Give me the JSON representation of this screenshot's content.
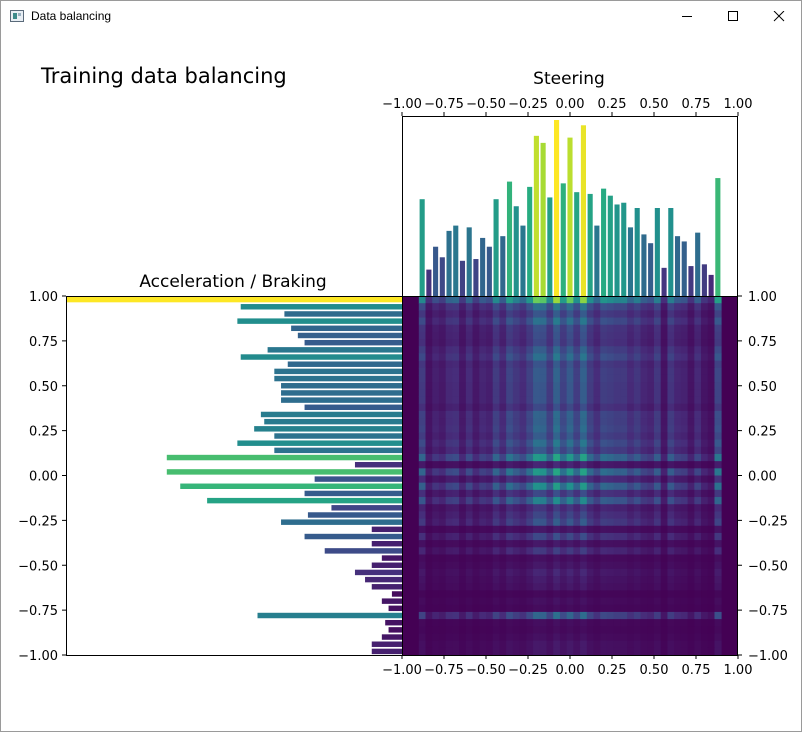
{
  "window": {
    "title": "Data balancing",
    "controls": {
      "minimize": "minimize-icon",
      "maximize": "maximize-icon",
      "close": "close-icon"
    }
  },
  "figure_title": "Training data balancing",
  "chart_data": [
    {
      "type": "bar",
      "orientation": "vertical",
      "title": "Steering",
      "xlim": [
        -1.0,
        1.0
      ],
      "xticks": [
        "−1.00",
        "−0.75",
        "−0.50",
        "−0.25",
        "0.00",
        "0.25",
        "0.50",
        "0.75",
        "1.00"
      ],
      "grid": false,
      "colormap": "viridis",
      "bin_width": 0.04,
      "x": [
        -0.88,
        -0.84,
        -0.8,
        -0.76,
        -0.72,
        -0.68,
        -0.64,
        -0.6,
        -0.56,
        -0.52,
        -0.48,
        -0.44,
        -0.4,
        -0.36,
        -0.32,
        -0.28,
        -0.24,
        -0.2,
        -0.16,
        -0.12,
        -0.08,
        -0.04,
        0.0,
        0.04,
        0.08,
        0.12,
        0.16,
        0.2,
        0.24,
        0.28,
        0.32,
        0.36,
        0.4,
        0.44,
        0.48,
        0.52,
        0.56,
        0.6,
        0.64,
        0.68,
        0.72,
        0.76,
        0.8,
        0.84,
        0.88
      ],
      "values": [
        0.55,
        0.15,
        0.28,
        0.22,
        0.37,
        0.4,
        0.2,
        0.39,
        0.21,
        0.33,
        0.28,
        0.55,
        0.34,
        0.65,
        0.51,
        0.4,
        0.62,
        0.91,
        0.87,
        0.56,
        1.0,
        0.64,
        0.9,
        0.59,
        0.97,
        0.58,
        0.4,
        0.61,
        0.57,
        0.52,
        0.53,
        0.39,
        0.5,
        0.35,
        0.3,
        0.5,
        0.16,
        0.5,
        0.34,
        0.31,
        0.17,
        0.36,
        0.18,
        0.12,
        0.67
      ]
    },
    {
      "type": "bar",
      "orientation": "horizontal",
      "title": "Acceleration / Braking",
      "ylim": [
        -1.0,
        1.0
      ],
      "yticks": [
        "1.00",
        "0.75",
        "0.50",
        "0.25",
        "0.00",
        "−0.25",
        "−0.50",
        "−0.75",
        "−1.00"
      ],
      "grid": false,
      "colormap": "viridis",
      "bin_width": 0.04,
      "y": [
        0.98,
        0.94,
        0.9,
        0.86,
        0.82,
        0.78,
        0.74,
        0.7,
        0.66,
        0.62,
        0.58,
        0.54,
        0.5,
        0.46,
        0.42,
        0.38,
        0.34,
        0.3,
        0.26,
        0.22,
        0.18,
        0.14,
        0.1,
        0.06,
        0.02,
        -0.02,
        -0.06,
        -0.1,
        -0.14,
        -0.18,
        -0.22,
        -0.26,
        -0.3,
        -0.34,
        -0.38,
        -0.42,
        -0.46,
        -0.5,
        -0.54,
        -0.58,
        -0.62,
        -0.66,
        -0.7,
        -0.74,
        -0.78,
        -0.82,
        -0.86,
        -0.9,
        -0.94,
        -0.98
      ],
      "values": [
        1.0,
        0.48,
        0.35,
        0.49,
        0.33,
        0.31,
        0.29,
        0.4,
        0.48,
        0.34,
        0.38,
        0.38,
        0.36,
        0.36,
        0.36,
        0.29,
        0.42,
        0.41,
        0.44,
        0.38,
        0.49,
        0.38,
        0.7,
        0.14,
        0.7,
        0.26,
        0.66,
        0.29,
        0.58,
        0.21,
        0.28,
        0.36,
        0.09,
        0.29,
        0.09,
        0.23,
        0.06,
        0.09,
        0.14,
        0.11,
        0.09,
        0.03,
        0.06,
        0.04,
        0.43,
        0.05,
        0.04,
        0.06,
        0.09,
        0.09
      ]
    },
    {
      "type": "heatmap",
      "xlim": [
        -1.0,
        1.0
      ],
      "ylim": [
        -1.0,
        1.0
      ],
      "xticks": [
        "−1.00",
        "−0.75",
        "−0.50",
        "−0.25",
        "0.00",
        "0.25",
        "0.50",
        "0.75",
        "1.00"
      ],
      "yticks": [
        "1.00",
        "0.75",
        "0.50",
        "0.25",
        "0.00",
        "−0.25",
        "−0.50",
        "−0.75",
        "−1.00"
      ],
      "colormap": "viridis",
      "rule": "product of steering and acceleration marginal densities"
    }
  ]
}
